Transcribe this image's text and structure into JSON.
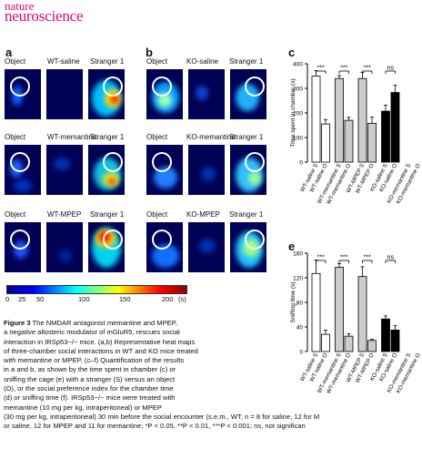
{
  "journal": {
    "line1": "nature",
    "line2": "neuroscience"
  },
  "panel_a": {
    "label": "a",
    "rows": [
      {
        "object": "Object",
        "condition": "WT-saline",
        "stranger": "Stranger 1"
      },
      {
        "object": "Object",
        "condition": "WT-memantine",
        "stranger": "Stranger 1"
      },
      {
        "object": "Object",
        "condition": "WT-MPEP",
        "stranger": "Stranger 1"
      }
    ]
  },
  "panel_b": {
    "label": "b",
    "rows": [
      {
        "object": "Object",
        "condition": "KO-saline",
        "stranger": "Stranger 1"
      },
      {
        "object": "Object",
        "condition": "KO-memantine",
        "stranger": "Stranger 1"
      },
      {
        "object": "Object",
        "condition": "KO-MPEP",
        "stranger": "Stranger 1"
      }
    ]
  },
  "colorbar": {
    "ticks": [
      "0",
      "25",
      "50",
      "100",
      "150",
      "200"
    ],
    "unit": "(s)",
    "colors": [
      "#00008b",
      "#0000ff",
      "#00ffff",
      "#ffff00",
      "#ff0000",
      "#8b0000"
    ]
  },
  "chart_data": [
    {
      "panel": "c",
      "type": "bar",
      "ylabel": "Time spent in chamber (s)",
      "ylim": [
        0,
        400
      ],
      "yticks": [
        0,
        100,
        200,
        300,
        400
      ],
      "categories": [
        "WT-saline S",
        "WT-saline O",
        "WT-memantine S",
        "WT-memantine O",
        "WT-MPEP S",
        "WT-MPEP O",
        "KO-saline S",
        "KO-saline O",
        "KO-memantine S",
        "KO-memantine O"
      ],
      "values": [
        350,
        155,
        340,
        170,
        340,
        158,
        207,
        283,
        null,
        null
      ],
      "errors": [
        22,
        18,
        12,
        12,
        25,
        25,
        25,
        30,
        null,
        null
      ],
      "fills": [
        "#ffffff",
        "#ffffff",
        "#cccccc",
        "#cccccc",
        "#cccccc",
        "#cccccc",
        "#000000",
        "#000000",
        "#000000",
        "#000000"
      ],
      "significance": [
        {
          "pair": [
            0,
            1
          ],
          "label": "***"
        },
        {
          "pair": [
            2,
            3
          ],
          "label": "***"
        },
        {
          "pair": [
            4,
            5
          ],
          "label": "***"
        },
        {
          "pair": [
            6,
            7
          ],
          "label": "ns"
        }
      ]
    },
    {
      "panel": "e",
      "type": "bar",
      "ylabel": "Sniffing time (s)",
      "ylim": [
        0,
        160
      ],
      "yticks": [
        0,
        40,
        80,
        120,
        160
      ],
      "categories": [
        "WT-saline S",
        "WT-saline O",
        "WT-memantine S",
        "WT-memantine O",
        "WT-MPEP S",
        "WT-MPEP O",
        "KO-saline S",
        "KO-saline O",
        "KO-memantine S",
        "KO-memantine O"
      ],
      "values": [
        127,
        28,
        137,
        25,
        122,
        18,
        53,
        35,
        null,
        null
      ],
      "errors": [
        22,
        7,
        6,
        4,
        16,
        2,
        5,
        7,
        null,
        null
      ],
      "fills": [
        "#ffffff",
        "#ffffff",
        "#cccccc",
        "#cccccc",
        "#cccccc",
        "#cccccc",
        "#000000",
        "#000000",
        "#000000",
        "#000000"
      ],
      "significance": [
        {
          "pair": [
            0,
            1
          ],
          "label": "***"
        },
        {
          "pair": [
            2,
            3
          ],
          "label": "***"
        },
        {
          "pair": [
            4,
            5
          ],
          "label": "***"
        },
        {
          "pair": [
            6,
            7
          ],
          "label": "ns"
        }
      ]
    }
  ],
  "caption": {
    "lines": [
      {
        "bold": "Figure 3",
        "text": " The NMDAR antagonist memantine and MPEP,"
      },
      {
        "bold": "",
        "text": "a negative allosteric modulator of mGluR5, rescues social"
      },
      {
        "bold": "",
        "text": "interaction in IRSp53−/− mice. (a,b) Representative heat maps"
      },
      {
        "bold": "",
        "text": "of three-chamber social interactions in WT and KO mice treated"
      },
      {
        "bold": "",
        "text": "with memantine or MPEP. (c–f) Quantification of the results"
      },
      {
        "bold": "",
        "text": "in a and b, as shown by the time spent in chamber (c) or"
      },
      {
        "bold": "",
        "text": "sniffing the cage (e) with a stranger (S) versus an object"
      },
      {
        "bold": "",
        "text": "(O), or the social preference index for the chamber time"
      },
      {
        "bold": "",
        "text": "(d) or sniffing time (f). IRSp53−/− mice were treated with"
      },
      {
        "bold": "",
        "text": "memantine (10 mg per kg, intraperitoneal) or MPEP"
      },
      {
        "bold": "",
        "text": "(30 mg per kg, intraperitoneal) 30 min before the social encounter (s.e.m., WT, n = 8 for saline, 12 for M"
      },
      {
        "bold": "",
        "text": "or saline, 12 for MPEP and 11 for memantine; *P < 0.05, **P < 0.01, ***P < 0.001; ns, not significan"
      }
    ]
  }
}
